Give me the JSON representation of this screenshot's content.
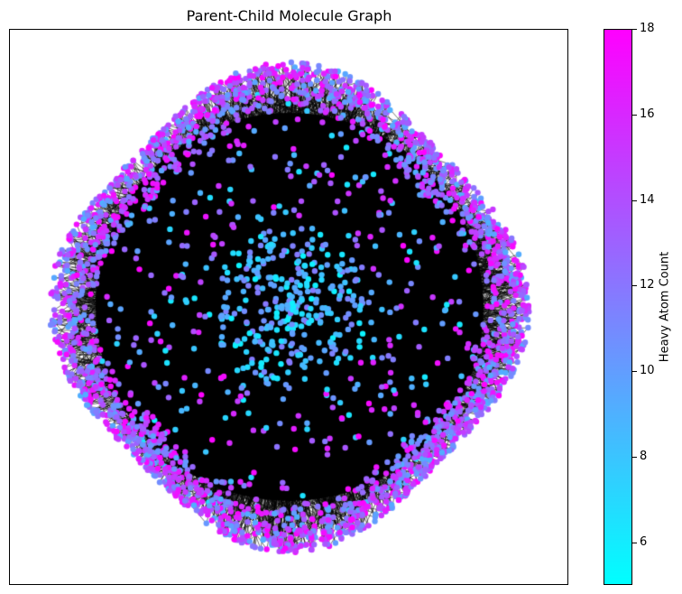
{
  "title": "Parent-Child Molecule Graph",
  "colorbar": {
    "label": "Heavy Atom Count",
    "min": 5,
    "max": 18,
    "ticks": [
      "6",
      "8",
      "10",
      "12",
      "14",
      "16",
      "18"
    ],
    "color_low": "#00ffff",
    "color_high": "#ff00ff"
  },
  "graph": {
    "node_colormap": "cool",
    "edge_color": "#000000",
    "background": "#ffffff"
  }
}
